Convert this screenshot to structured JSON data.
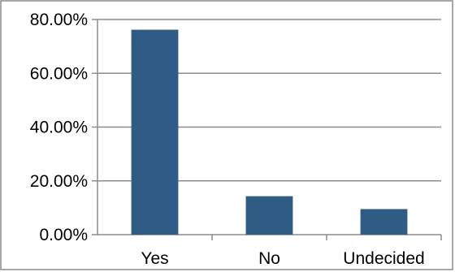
{
  "chart_data": {
    "type": "bar",
    "categories": [
      "Yes",
      "No",
      "Undecided"
    ],
    "values": [
      76.2,
      14.3,
      9.5
    ],
    "ylim": [
      0,
      80
    ],
    "yticks": [
      0,
      20,
      40,
      60,
      80
    ],
    "ytick_labels": [
      "0.00%",
      "20.00%",
      "40.00%",
      "60.00%",
      "80.00%"
    ],
    "grid": true,
    "legend": "none",
    "bar_color": "#2E5C84",
    "grid_color": "#8C8C8C",
    "border_color": "#8C8C8C"
  }
}
